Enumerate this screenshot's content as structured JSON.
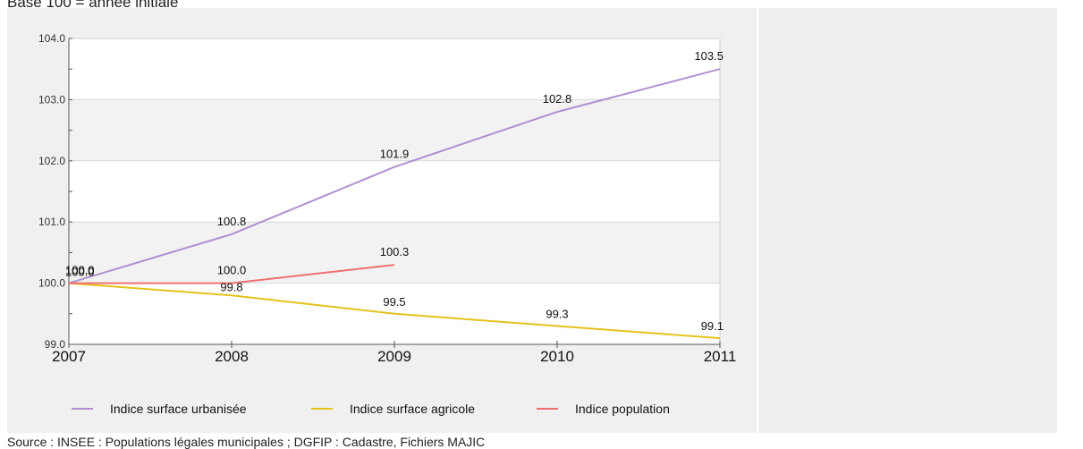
{
  "subtitle": "Base 100 = année initiale",
  "source": "Source : INSEE : Populations légales municipales ; DGFIP : Cadastre, Fichiers MAJIC",
  "chart_data": {
    "type": "line",
    "x": [
      "2007",
      "2008",
      "2009",
      "2010",
      "2011"
    ],
    "ylim": [
      99.0,
      104.0
    ],
    "yticks": [
      "99.0",
      "100.0",
      "101.0",
      "102.0",
      "103.0",
      "104.0"
    ],
    "grid": "alternating-horizontal-bands",
    "legend_position": "bottom",
    "series": [
      {
        "name": "Indice surface urbanisée",
        "color": "#b08fd0",
        "values": [
          100.0,
          100.8,
          101.9,
          102.8,
          103.5
        ],
        "labels": [
          "100.0",
          "100.8",
          "101.9",
          "102.8",
          "103.5"
        ]
      },
      {
        "name": "Indice surface agricole",
        "color": "#e4c21c",
        "values": [
          100.0,
          99.8,
          99.5,
          99.3,
          99.1
        ],
        "labels": [
          "100.0",
          "99.8",
          "99.5",
          "99.3",
          "99.1"
        ]
      },
      {
        "name": "Indice population",
        "color": "#f07070",
        "values": [
          100.0,
          100.0,
          100.3,
          null,
          null
        ],
        "labels": [
          "100.0",
          "100.0",
          "100.3",
          "",
          ""
        ]
      }
    ]
  }
}
